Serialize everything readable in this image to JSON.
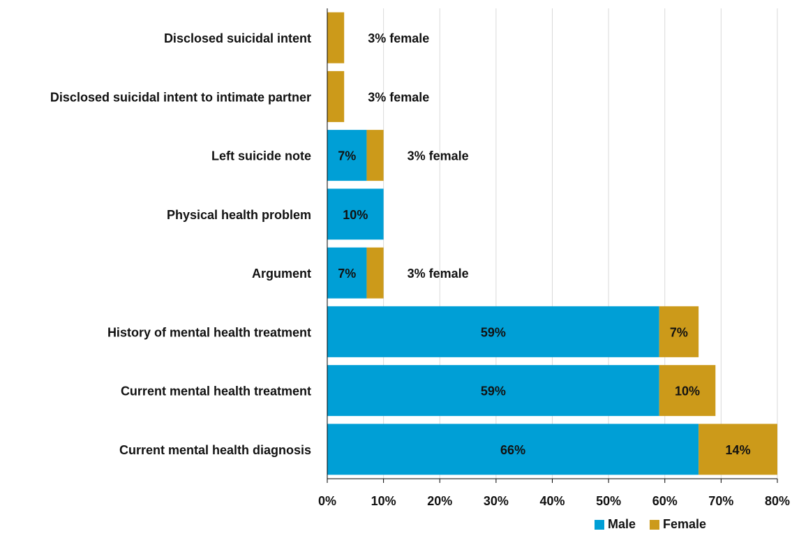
{
  "chart_data": {
    "type": "bar",
    "orientation": "horizontal",
    "stacked": true,
    "categories": [
      "Disclosed suicidal intent",
      "Disclosed suicidal intent to intimate partner",
      "Left suicide note",
      "Physical health problem",
      "Argument",
      "History of mental health treatment",
      "Current mental health treatment",
      "Current mental health diagnosis"
    ],
    "series": [
      {
        "name": "Male",
        "color": "#009fd6",
        "values": [
          0,
          0,
          7,
          10,
          7,
          59,
          59,
          66
        ],
        "labels": [
          "",
          "",
          "7%",
          "10%",
          "7%",
          "59%",
          "59%",
          "66%"
        ]
      },
      {
        "name": "Female",
        "color": "#cc9a1a",
        "values": [
          3,
          3,
          3,
          0,
          3,
          7,
          10,
          14
        ],
        "labels": [
          "",
          "",
          "",
          "",
          "",
          "7%",
          "10%",
          "14%"
        ]
      }
    ],
    "annotations": [
      "3% female",
      "3% female",
      "3% female",
      "",
      "3% female",
      "",
      "",
      ""
    ],
    "xlim": [
      0,
      80
    ],
    "xticks": [
      "0%",
      "10%",
      "20%",
      "30%",
      "40%",
      "50%",
      "60%",
      "70%",
      "80%"
    ],
    "grid": true,
    "legend_position": "bottom-right"
  }
}
